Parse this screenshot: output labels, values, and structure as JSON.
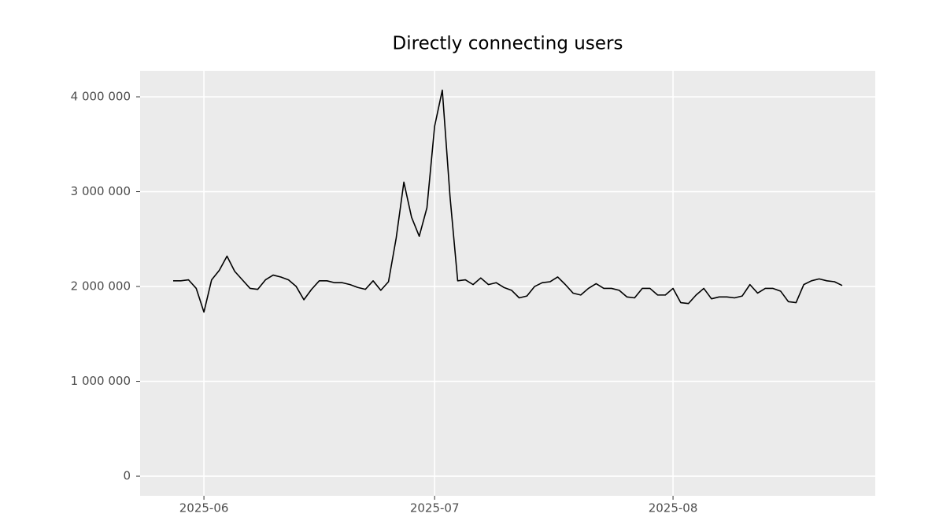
{
  "chart_data": {
    "type": "line",
    "title": "Directly connecting users",
    "categories": [
      null,
      null,
      null,
      null,
      "2025-06",
      null,
      null,
      null,
      null,
      null,
      null,
      null,
      null,
      null,
      null,
      null,
      null,
      null,
      null,
      null,
      null,
      null,
      null,
      null,
      null,
      null,
      null,
      null,
      null,
      null,
      null,
      null,
      null,
      null,
      "2025-07",
      null,
      null,
      null,
      null,
      null,
      null,
      null,
      null,
      null,
      null,
      null,
      null,
      null,
      null,
      null,
      null,
      null,
      null,
      null,
      null,
      null,
      null,
      null,
      null,
      null,
      null,
      null,
      null,
      null,
      null,
      "2025-08",
      null,
      null,
      null,
      null,
      null,
      null,
      null,
      null,
      null,
      null,
      null,
      null,
      null,
      null,
      null,
      null,
      null,
      null,
      null,
      null,
      null,
      null
    ],
    "values": [
      2060000,
      2060000,
      2070000,
      1980000,
      1730000,
      2070000,
      2170000,
      2320000,
      2160000,
      2070000,
      1980000,
      1970000,
      2070000,
      2120000,
      2100000,
      2070000,
      2000000,
      1860000,
      1970000,
      2060000,
      2060000,
      2040000,
      2040000,
      2020000,
      1990000,
      1970000,
      2060000,
      1960000,
      2050000,
      2510000,
      3100000,
      2730000,
      2530000,
      2830000,
      3690000,
      4070000,
      2950000,
      2060000,
      2070000,
      2020000,
      2090000,
      2020000,
      2040000,
      1990000,
      1960000,
      1880000,
      1900000,
      2000000,
      2040000,
      2050000,
      2100000,
      2020000,
      1930000,
      1910000,
      1980000,
      2030000,
      1980000,
      1980000,
      1960000,
      1890000,
      1880000,
      1980000,
      1980000,
      1910000,
      1910000,
      1980000,
      1830000,
      1820000,
      1910000,
      1980000,
      1870000,
      1890000,
      1890000,
      1880000,
      1900000,
      2020000,
      1930000,
      1980000,
      1980000,
      1950000,
      1840000,
      1830000,
      2020000,
      2060000,
      2080000,
      2060000,
      2050000,
      2010000
    ],
    "color": "#000000",
    "ylim": [
      -207000,
      4274000
    ],
    "yticks": [
      0,
      {
        "value": 1000000,
        "label": "1 000 000"
      },
      {
        "value": 2000000,
        "label": "2 000 000"
      },
      {
        "value": 3000000,
        "label": "3 000 000"
      },
      {
        "value": 4000000,
        "label": "4 000 000"
      }
    ],
    "grid": true
  }
}
